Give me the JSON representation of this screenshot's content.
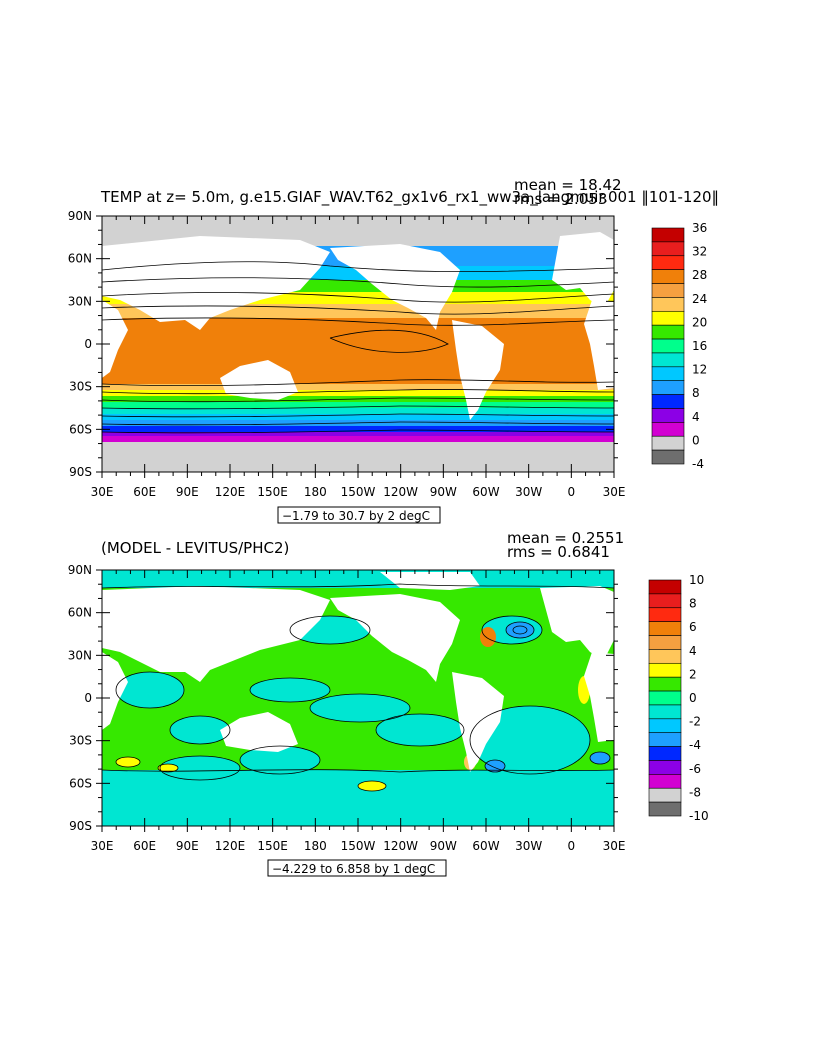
{
  "panels": [
    {
      "title": "TEMP at z=   5.0m, g.e15.GIAF_WAV.T62_gx1v6_rx1_ww3a_langmuir.001 ‖101-120‖",
      "mean_label": "mean = 18.42",
      "rms_label": "rms = 2.053",
      "range_label": "−1.79 to 30.7 by 2 degC",
      "colorbar": {
        "labels": [
          "36",
          "32",
          "28",
          "24",
          "20",
          "16",
          "12",
          "8",
          "4",
          "0",
          "-4"
        ],
        "colors": [
          "#c40000",
          "#e81e1e",
          "#ff2a10",
          "#f0800a",
          "#f5a040",
          "#ffc65a",
          "#ffff00",
          "#36e800",
          "#00ff8c",
          "#00e6d2",
          "#00c8ff",
          "#1ea0ff",
          "#0028ff",
          "#8c00e6",
          "#d200d2",
          "#d2d2d2",
          "#6e6e6e"
        ]
      }
    },
    {
      "title": "(MODEL - LEVITUS/PHC2)",
      "mean_label": "mean = 0.2551",
      "rms_label": "rms = 0.6841",
      "range_label": "−4.229 to 6.858 by 1 degC",
      "colorbar": {
        "labels": [
          "10",
          "8",
          "6",
          "4",
          "2",
          "0",
          "-2",
          "-4",
          "-6",
          "-8",
          "-10"
        ],
        "colors": [
          "#c40000",
          "#e81e1e",
          "#ff2a10",
          "#f0800a",
          "#f5a040",
          "#ffc65a",
          "#ffff00",
          "#36e800",
          "#00ff8c",
          "#00e6d2",
          "#00c8ff",
          "#1ea0ff",
          "#0028ff",
          "#8c00e6",
          "#d200d2",
          "#d2d2d2",
          "#6e6e6e"
        ]
      }
    }
  ],
  "chart_data": [
    {
      "type": "heatmap",
      "title": "TEMP at z=   5.0m, g.e15.GIAF_WAV.T62_gx1v6_rx1_ww3a_langmuir.001 ‖101-120‖",
      "x_ticks": [
        "30E",
        "60E",
        "90E",
        "120E",
        "150E",
        "180",
        "150W",
        "120W",
        "90W",
        "60W",
        "30W",
        "0",
        "30E"
      ],
      "y_ticks": [
        "90N",
        "60N",
        "30N",
        "0",
        "30S",
        "60S",
        "90S"
      ],
      "xlim": [
        30,
        390
      ],
      "ylim": [
        -90,
        90
      ],
      "zlim": [
        -1.79,
        30.7
      ],
      "contour_interval": 2,
      "mean": 18.42,
      "rms": 2.053,
      "units": "degC",
      "colorbar_levels": [
        -4,
        0,
        4,
        8,
        12,
        16,
        20,
        24,
        28,
        32,
        36
      ]
    },
    {
      "type": "heatmap",
      "title": "(MODEL - LEVITUS/PHC2)",
      "x_ticks": [
        "30E",
        "60E",
        "90E",
        "120E",
        "150E",
        "180",
        "150W",
        "120W",
        "90W",
        "60W",
        "30W",
        "0",
        "30E"
      ],
      "y_ticks": [
        "90N",
        "60N",
        "30N",
        "0",
        "30S",
        "60S",
        "90S"
      ],
      "xlim": [
        30,
        390
      ],
      "ylim": [
        -90,
        90
      ],
      "zlim": [
        -4.229,
        6.858
      ],
      "contour_interval": 1,
      "mean": 0.2551,
      "rms": 0.6841,
      "units": "degC",
      "colorbar_levels": [
        -10,
        -8,
        -6,
        -4,
        -2,
        0,
        2,
        4,
        6,
        8,
        10
      ]
    }
  ]
}
